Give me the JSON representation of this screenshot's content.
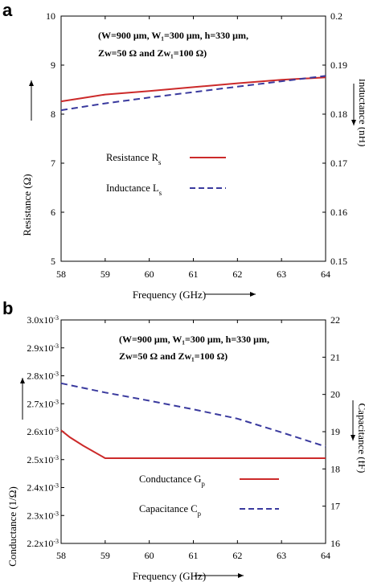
{
  "panels": {
    "a": {
      "letter": "a"
    },
    "b": {
      "letter": "b"
    }
  },
  "chart_data": [
    {
      "type": "line",
      "panel": "a",
      "annotation": {
        "line1": "(W=900 μm, W₁=300 μm, h=330 μm,",
        "line2": "Zᴡ=50 Ω and Zᴡ₁=100 Ω)"
      },
      "xlabel": "Frequency (GHz)",
      "ylabel": "Resistance (Ω)",
      "y2label": "Inductance (nH)",
      "xlim": [
        58,
        64
      ],
      "xticks": [
        "58",
        "59",
        "60",
        "61",
        "62",
        "63",
        "64"
      ],
      "ylim": [
        5,
        10
      ],
      "yticks": [
        "5",
        "6",
        "7",
        "8",
        "9",
        "10"
      ],
      "y2lim": [
        0.15,
        0.2
      ],
      "y2ticks": [
        "0.15",
        "0.16",
        "0.17",
        "0.18",
        "0.19",
        "0.2"
      ],
      "grid": false,
      "legend_position": "center-left",
      "series": [
        {
          "name": "Resistance R",
          "name_sub": "s",
          "axis": "left",
          "color": "#cc2a2a",
          "style": "solid",
          "x": [
            58,
            58.5,
            59,
            60,
            61,
            62,
            63,
            64
          ],
          "y": [
            8.26,
            8.33,
            8.4,
            8.47,
            8.55,
            8.63,
            8.7,
            8.75
          ]
        },
        {
          "name": "Inductance L",
          "name_sub": "s",
          "axis": "right",
          "color": "#3a3a9e",
          "style": "dashed",
          "x": [
            58,
            59,
            60,
            61,
            62,
            63,
            64
          ],
          "y": [
            0.1808,
            0.1822,
            0.1834,
            0.1845,
            0.1856,
            0.1867,
            0.1878
          ]
        }
      ]
    },
    {
      "type": "line",
      "panel": "b",
      "annotation": {
        "line1": "(W=900 μm, W₁=300 μm, h=330 μm,",
        "line2": "Zᴡ=50 Ω and Zᴡ₁=100 Ω)"
      },
      "xlabel": "Frequency (GHz)",
      "ylabel": "Conductance (1/Ω)",
      "y2label": "Capacitance (fF)",
      "xlim": [
        58,
        64
      ],
      "xticks": [
        "58",
        "59",
        "60",
        "61",
        "62",
        "63",
        "64"
      ],
      "ylim": [
        0.0022,
        0.003
      ],
      "yticks": [
        {
          "base": "2.2x10",
          "exp": "-3"
        },
        {
          "base": "2.3x10",
          "exp": "-3"
        },
        {
          "base": "2.4x10",
          "exp": "-3"
        },
        {
          "base": "2.5x10",
          "exp": "-3"
        },
        {
          "base": "2.6x10",
          "exp": "-3"
        },
        {
          "base": "2.7x10",
          "exp": "-3"
        },
        {
          "base": "2.8x10",
          "exp": "-3"
        },
        {
          "base": "2.9x10",
          "exp": "-3"
        },
        {
          "base": "3.0x10",
          "exp": "-3"
        }
      ],
      "y2lim": [
        16,
        22
      ],
      "y2ticks": [
        "16",
        "17",
        "18",
        "19",
        "20",
        "21",
        "22"
      ],
      "grid": false,
      "legend_position": "bottom-right",
      "series": [
        {
          "name": "Conductance G",
          "name_sub": "p",
          "axis": "left",
          "color": "#cc2a2a",
          "style": "solid",
          "x": [
            58,
            58.2,
            58.5,
            59,
            60,
            61,
            62,
            63,
            64
          ],
          "y": [
            0.002605,
            0.00258,
            0.00255,
            0.002505,
            0.002505,
            0.002505,
            0.002505,
            0.002505,
            0.002505
          ]
        },
        {
          "name": "Capacitance C",
          "name_sub": "p",
          "axis": "right",
          "color": "#3a3a9e",
          "style": "dashed",
          "x": [
            58,
            59,
            60,
            61,
            62,
            63,
            64
          ],
          "y": [
            20.3,
            20.05,
            19.83,
            19.6,
            19.35,
            18.98,
            18.6
          ]
        }
      ]
    }
  ]
}
